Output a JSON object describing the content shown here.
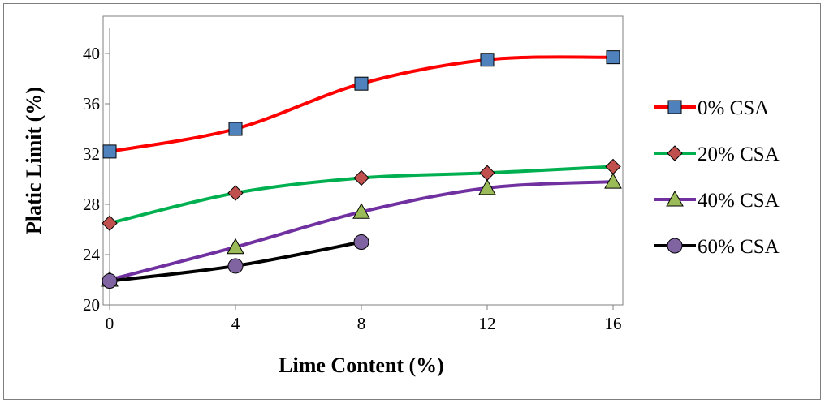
{
  "chart_data": {
    "type": "line",
    "title": "",
    "xlabel": "Lime Content (%)",
    "ylabel": "Platic Limit (%)",
    "xlim": [
      0,
      16
    ],
    "ylim": [
      20,
      42
    ],
    "xticks": [
      "0",
      "4",
      "8",
      "12",
      "16"
    ],
    "yticks": [
      "20",
      "24",
      "28",
      "32",
      "36",
      "40"
    ],
    "grid": false,
    "legend_position": "right",
    "series": [
      {
        "name": "0% CSA",
        "color": "#ff0000",
        "marker": "square",
        "marker_fill": "#4f81bd",
        "x": [
          0,
          4,
          8,
          12,
          16
        ],
        "y": [
          32.2,
          34.0,
          37.6,
          39.5,
          39.7
        ]
      },
      {
        "name": "20% CSA",
        "color": "#00b050",
        "marker": "diamond",
        "marker_fill": "#c0504d",
        "x": [
          0,
          4,
          8,
          12,
          16
        ],
        "y": [
          26.5,
          28.9,
          30.1,
          30.5,
          31.0
        ]
      },
      {
        "name": "40% CSA",
        "color": "#7030a0",
        "marker": "triangle",
        "marker_fill": "#9bbb59",
        "x": [
          0,
          4,
          8,
          12,
          16
        ],
        "y": [
          22.0,
          24.6,
          27.4,
          29.3,
          29.8
        ]
      },
      {
        "name": "60% CSA",
        "color": "#000000",
        "marker": "circle",
        "marker_fill": "#8064a2",
        "x": [
          0,
          4,
          8
        ],
        "y": [
          21.9,
          23.1,
          25.0
        ]
      }
    ]
  }
}
